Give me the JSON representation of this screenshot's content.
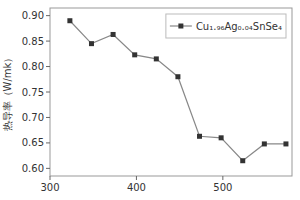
{
  "chart_data": {
    "type": "line",
    "ylabel": "热导率（W/mk）",
    "x": [
      323,
      348,
      373,
      398,
      423,
      448,
      473,
      498,
      523,
      548,
      573
    ],
    "series": [
      {
        "name": "Cu₁.₉₆Ag₀.₀₄SnSe₄",
        "color": "#888888",
        "marker": "square",
        "values": [
          0.89,
          0.845,
          0.863,
          0.823,
          0.815,
          0.78,
          0.663,
          0.66,
          0.615,
          0.648,
          0.648
        ]
      }
    ],
    "xlim": [
      300,
      580
    ],
    "xticks": [
      300,
      400,
      500
    ],
    "ylim": [
      0.585,
      0.915
    ],
    "yticks": [
      {
        "value": 0.6,
        "label": "0.60"
      },
      0.65,
      {
        "value": 0.7,
        "label": "0.70"
      },
      0.75,
      {
        "value": 0.8,
        "label": "0.80"
      },
      0.85,
      {
        "value": 0.9,
        "label": "0.90"
      }
    ],
    "grid": false,
    "legend": "upper right"
  }
}
